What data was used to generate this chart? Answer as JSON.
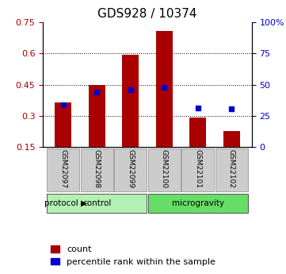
{
  "title": "GDS928 / 10374",
  "samples": [
    "GSM22097",
    "GSM22098",
    "GSM22099",
    "GSM22100",
    "GSM22101",
    "GSM22102"
  ],
  "red_bar_values": [
    0.365,
    0.448,
    0.592,
    0.705,
    0.293,
    0.228
  ],
  "blue_marker_values": [
    0.355,
    0.415,
    0.425,
    0.435,
    0.338,
    0.335
  ],
  "blue_marker_pct": [
    37,
    40,
    43,
    44,
    34,
    34
  ],
  "red_bar_bottom": 0.15,
  "ylim_left": [
    0.15,
    0.75
  ],
  "ylim_right": [
    0,
    100
  ],
  "yticks_left": [
    0.15,
    0.3,
    0.45,
    0.6,
    0.75
  ],
  "yticks_right": [
    0,
    25,
    50,
    75,
    100
  ],
  "ytick_labels_left": [
    "0.15",
    "0.3",
    "0.45",
    "0.6",
    "0.75"
  ],
  "ytick_labels_right": [
    "0",
    "25",
    "50",
    "75",
    "100%"
  ],
  "groups": [
    {
      "label": "control",
      "indices": [
        0,
        1,
        2
      ],
      "color": "#b3f0b3"
    },
    {
      "label": "microgravity",
      "indices": [
        3,
        4,
        5
      ],
      "color": "#66dd66"
    }
  ],
  "bar_color": "#aa0000",
  "marker_color": "#0000cc",
  "grid_color": "#000000",
  "label_bg_color": "#cccccc",
  "title_fontsize": 11,
  "tick_fontsize": 8,
  "legend_fontsize": 8,
  "bar_width": 0.5
}
